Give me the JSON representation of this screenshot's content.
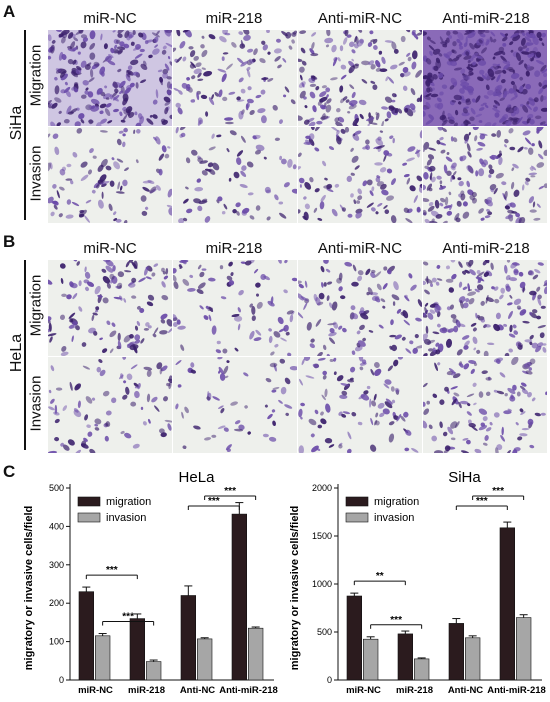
{
  "panels": {
    "A": {
      "letter": "A",
      "cell_line": "SiHa",
      "columns": [
        "miR-NC",
        "miR-218",
        "Anti-miR-NC",
        "Anti-miR-218"
      ],
      "rows": [
        "Migration",
        "Invasion"
      ]
    },
    "B": {
      "letter": "B",
      "cell_line": "HeLa",
      "columns": [
        "miR-NC",
        "miR-218",
        "Anti-miR-NC",
        "Anti-miR-218"
      ],
      "rows": [
        "Migration",
        "Invasion"
      ]
    },
    "C": {
      "letter": "C"
    }
  },
  "colors": {
    "migration": "#2b1b1e",
    "invasion": "#a6a6a6",
    "stain_dark": "#3a1f6b",
    "stain_mid": "#6a4aa8",
    "bg_light": "#eef0ec"
  },
  "chart_data": [
    {
      "type": "bar",
      "title": "HeLa",
      "ylabel": "migratory or invasive cells/field",
      "categories": [
        "miR-NC",
        "miR-218",
        "Anti-NC",
        "Anti-miR-218"
      ],
      "series": [
        {
          "name": "migration",
          "values": [
            230,
            160,
            220,
            432
          ],
          "errors": [
            12,
            12,
            25,
            30
          ]
        },
        {
          "name": "invasion",
          "values": [
            115,
            48,
            107,
            135
          ],
          "errors": [
            6,
            4,
            3,
            3
          ]
        }
      ],
      "ylim": [
        0,
        500
      ],
      "yticks": [
        0,
        100,
        200,
        300,
        400,
        500
      ],
      "legend": "top-left",
      "significance": [
        {
          "label": "***",
          "from": [
            0,
            0
          ],
          "to": [
            1,
            0
          ]
        },
        {
          "label": "***",
          "from": [
            0,
            1
          ],
          "to": [
            1,
            1
          ]
        },
        {
          "label": "***",
          "from": [
            2,
            0
          ],
          "to": [
            3,
            0
          ]
        },
        {
          "label": "***",
          "from": [
            2,
            1
          ],
          "to": [
            3,
            1
          ]
        }
      ]
    },
    {
      "type": "bar",
      "title": "SiHa",
      "ylabel": "migratory or invasive cells/field",
      "categories": [
        "miR-NC",
        "miR-218",
        "Anti-NC",
        "Anti-miR-218"
      ],
      "series": [
        {
          "name": "migration",
          "values": [
            875,
            480,
            590,
            1585
          ],
          "errors": [
            30,
            30,
            50,
            60
          ]
        },
        {
          "name": "invasion",
          "values": [
            425,
            220,
            440,
            650
          ],
          "errors": [
            25,
            10,
            20,
            30
          ]
        }
      ],
      "ylim": [
        0,
        2000
      ],
      "yticks": [
        0,
        500,
        1000,
        1500,
        2000
      ],
      "legend": "top-left",
      "significance": [
        {
          "label": "**",
          "from": [
            0,
            0
          ],
          "to": [
            1,
            0
          ]
        },
        {
          "label": "***",
          "from": [
            0,
            1
          ],
          "to": [
            1,
            1
          ]
        },
        {
          "label": "***",
          "from": [
            2,
            0
          ],
          "to": [
            3,
            0
          ]
        },
        {
          "label": "***",
          "from": [
            2,
            1
          ],
          "to": [
            3,
            1
          ]
        }
      ]
    }
  ]
}
